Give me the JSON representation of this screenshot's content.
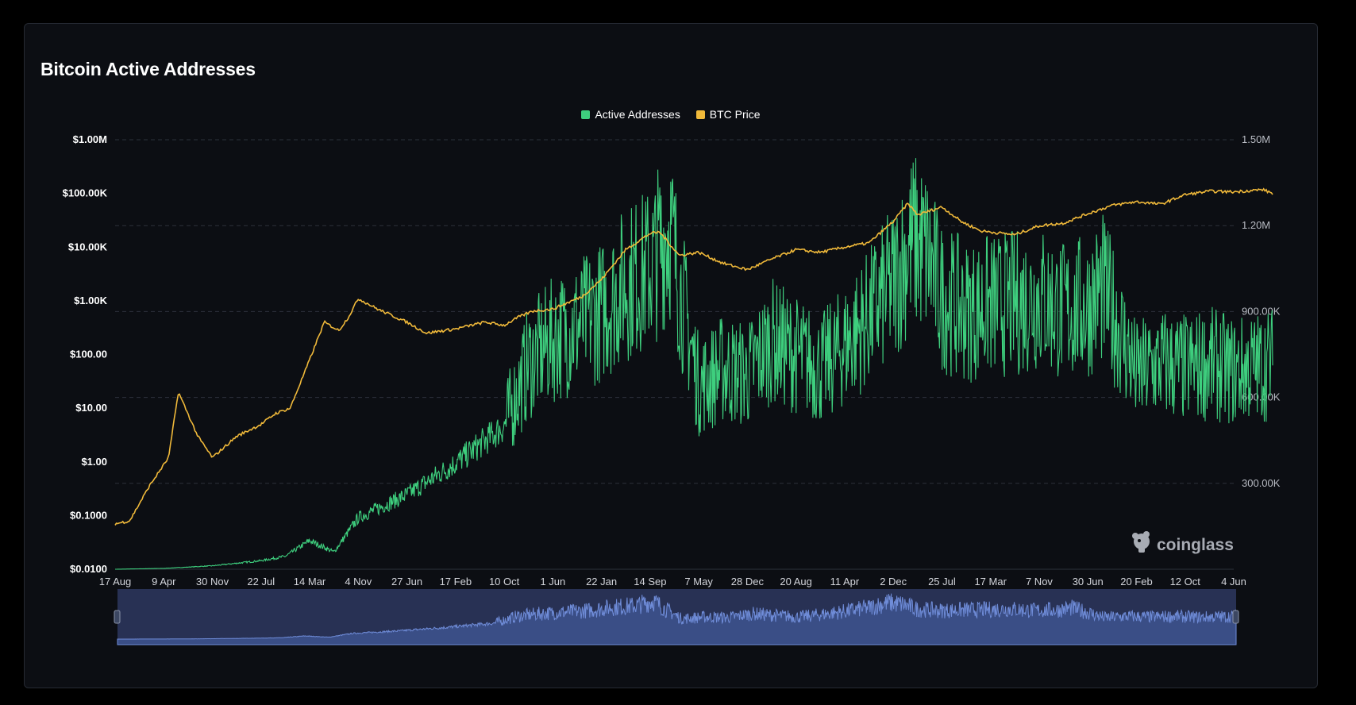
{
  "title": "Bitcoin Active Addresses",
  "legend": [
    {
      "label": "Active Addresses",
      "color": "#3ecf7e"
    },
    {
      "label": "BTC Price",
      "color": "#f0b93a"
    }
  ],
  "brand": "coinglass",
  "chart_data": {
    "type": "line",
    "title": "Bitcoin Active Addresses",
    "x_ticks": [
      "17 Aug",
      "9 Apr",
      "30 Nov",
      "22 Jul",
      "14 Mar",
      "4 Nov",
      "27 Jun",
      "17 Feb",
      "10 Oct",
      "1 Jun",
      "22 Jan",
      "14 Sep",
      "7 May",
      "28 Dec",
      "20 Aug",
      "11 Apr",
      "2 Dec",
      "25 Jul",
      "17 Mar",
      "7 Nov",
      "30 Jun",
      "20 Feb",
      "12 Oct",
      "4 Jun"
    ],
    "y_left": {
      "label": "BTC Price",
      "scale": "log",
      "ticks": [
        "$0.0100",
        "$0.1000",
        "$1.00",
        "$10.00",
        "$100.00",
        "$1.00K",
        "$10.00K",
        "$100.00K",
        "$1.00M"
      ],
      "range": [
        0.01,
        1000000
      ]
    },
    "y_right": {
      "label": "Active Addresses",
      "scale": "linear",
      "ticks": [
        "300.00K",
        "600.00K",
        "900.00K",
        "1.20M",
        "1.50M"
      ],
      "range": [
        0,
        1500000
      ]
    },
    "grid": true,
    "legend_position": "top-center",
    "series": [
      {
        "name": "Active Addresses",
        "axis": "right",
        "color": "#3ecf7e",
        "x_tick_index": [
          0,
          1,
          2,
          3,
          3.5,
          4,
          4.5,
          5,
          6,
          7,
          8,
          8.5,
          9,
          10,
          10.5,
          11,
          11.4,
          11.6,
          12,
          12.5,
          13,
          13.5,
          14,
          14.5,
          15,
          15.5,
          16,
          16.4,
          16.7,
          17,
          17.5,
          18,
          18.5,
          19,
          19.5,
          20,
          20.3,
          20.6,
          21,
          21.5,
          22,
          22.5,
          23,
          23.8
        ],
        "values": [
          0,
          3000,
          12000,
          30000,
          45000,
          100000,
          60000,
          180000,
          260000,
          370000,
          500000,
          720000,
          800000,
          900000,
          1000000,
          1050000,
          1200000,
          1000000,
          640000,
          700000,
          680000,
          800000,
          750000,
          700000,
          780000,
          880000,
          1000000,
          1150000,
          1100000,
          950000,
          900000,
          920000,
          930000,
          950000,
          900000,
          920000,
          980000,
          860000,
          680000,
          720000,
          700000,
          720000,
          690000,
          720000
        ]
      },
      {
        "name": "BTC Price",
        "axis": "left",
        "color": "#f0b93a",
        "x_tick_index": [
          0,
          0.3,
          0.7,
          1.1,
          1.3,
          1.7,
          2,
          2.5,
          3,
          3.3,
          3.6,
          4,
          4.3,
          4.6,
          4.8,
          5,
          5.4,
          6,
          6.4,
          7,
          7.6,
          8,
          8.3,
          8.6,
          9,
          9.6,
          10,
          10.5,
          11,
          11.2,
          11.6,
          12,
          12.5,
          13,
          13.5,
          14,
          14.5,
          15,
          15.5,
          16,
          16.3,
          16.5,
          17,
          17.4,
          17.8,
          18.5,
          19,
          19.5,
          20,
          20.5,
          21,
          21.5,
          22,
          22.5,
          23,
          23.6,
          23.8
        ],
        "values": [
          0.07,
          0.08,
          0.35,
          1.2,
          20,
          3,
          1.2,
          3,
          5,
          8,
          10,
          80,
          400,
          280,
          500,
          1100,
          700,
          400,
          250,
          300,
          400,
          350,
          500,
          650,
          700,
          1200,
          2500,
          9000,
          18000,
          19000,
          7000,
          8000,
          5000,
          3800,
          6000,
          9000,
          8000,
          10000,
          12000,
          30000,
          65000,
          40000,
          56000,
          30000,
          20000,
          17000,
          25000,
          28000,
          42000,
          60000,
          70000,
          63000,
          95000,
          110000,
          107000,
          118000,
          100000
        ]
      }
    ]
  }
}
